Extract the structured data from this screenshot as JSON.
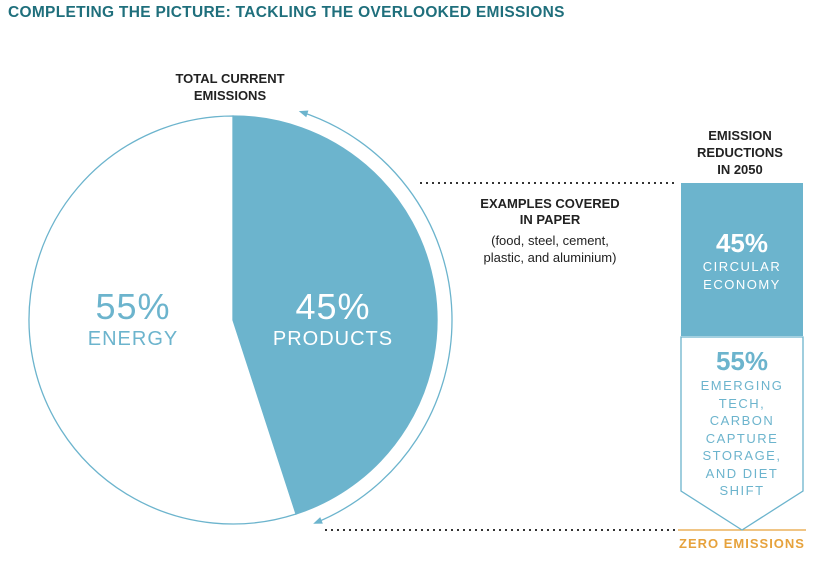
{
  "title": "COMPLETING THE PICTURE: TACKLING THE OVERLOOKED EMISSIONS",
  "pie": {
    "title_line1": "TOTAL CURRENT",
    "title_line2": "EMISSIONS"
  },
  "examples": {
    "title_line1": "EXAMPLES COVERED",
    "title_line2": "IN PAPER",
    "detail_line1": "(food, steel, cement,",
    "detail_line2": "plastic, and aluminium)"
  },
  "reductions": {
    "title_line1": "EMISSION",
    "title_line2": "REDUCTIONS",
    "title_line3": "IN 2050",
    "segments": [
      {
        "value_label": "45%",
        "label_lines": [
          "CIRCULAR",
          "ECONOMY"
        ]
      },
      {
        "value_label": "55%",
        "label_lines": [
          "EMERGING",
          "TECH,",
          "CARBON",
          "CAPTURE",
          "STORAGE,",
          "AND DIET",
          "SHIFT"
        ]
      }
    ],
    "zero_label": "ZERO EMISSIONS"
  },
  "colors": {
    "accent": "#6cb4cd",
    "title": "#1f6f7c",
    "zero": "#e6a23c"
  },
  "chart_data": {
    "type": "pie",
    "title": "TOTAL CURRENT EMISSIONS",
    "slices": [
      {
        "label": "PRODUCTS",
        "value": 45,
        "value_label": "45%",
        "color": "#6cb4cd"
      },
      {
        "label": "ENERGY",
        "value": 55,
        "value_label": "55%",
        "color": "#ffffff"
      }
    ]
  }
}
